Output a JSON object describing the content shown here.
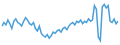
{
  "chart_data": {
    "type": "line",
    "color": "#4a9fd8",
    "grid": false,
    "tick_labels": false,
    "ylim": [
      10,
      44
    ],
    "categories": [
      null,
      null,
      null,
      null,
      null,
      null,
      null,
      null,
      null,
      null,
      null,
      null,
      null,
      null,
      null,
      null,
      null,
      null,
      null,
      null,
      null,
      null,
      null,
      null,
      null,
      null,
      null,
      null,
      null,
      null,
      null,
      null,
      null,
      null,
      null,
      null,
      null,
      null,
      null,
      null,
      null,
      null,
      null,
      null,
      null,
      null,
      null,
      null,
      null,
      null,
      null,
      null,
      null,
      null,
      null,
      null,
      null,
      null,
      null,
      null
    ],
    "values": [
      24,
      27,
      25,
      29,
      26,
      22,
      28,
      30,
      27,
      26,
      24,
      28,
      31,
      29,
      26,
      25,
      27,
      22,
      20,
      24,
      18,
      16,
      15,
      17,
      14,
      16,
      19,
      18,
      20,
      21,
      19,
      22,
      23,
      21,
      24,
      26,
      27,
      25,
      28,
      27,
      29,
      26,
      28,
      27,
      30,
      28,
      29,
      41,
      38,
      15,
      12,
      40,
      42,
      39,
      41,
      28,
      27,
      30,
      26,
      28
    ]
  }
}
